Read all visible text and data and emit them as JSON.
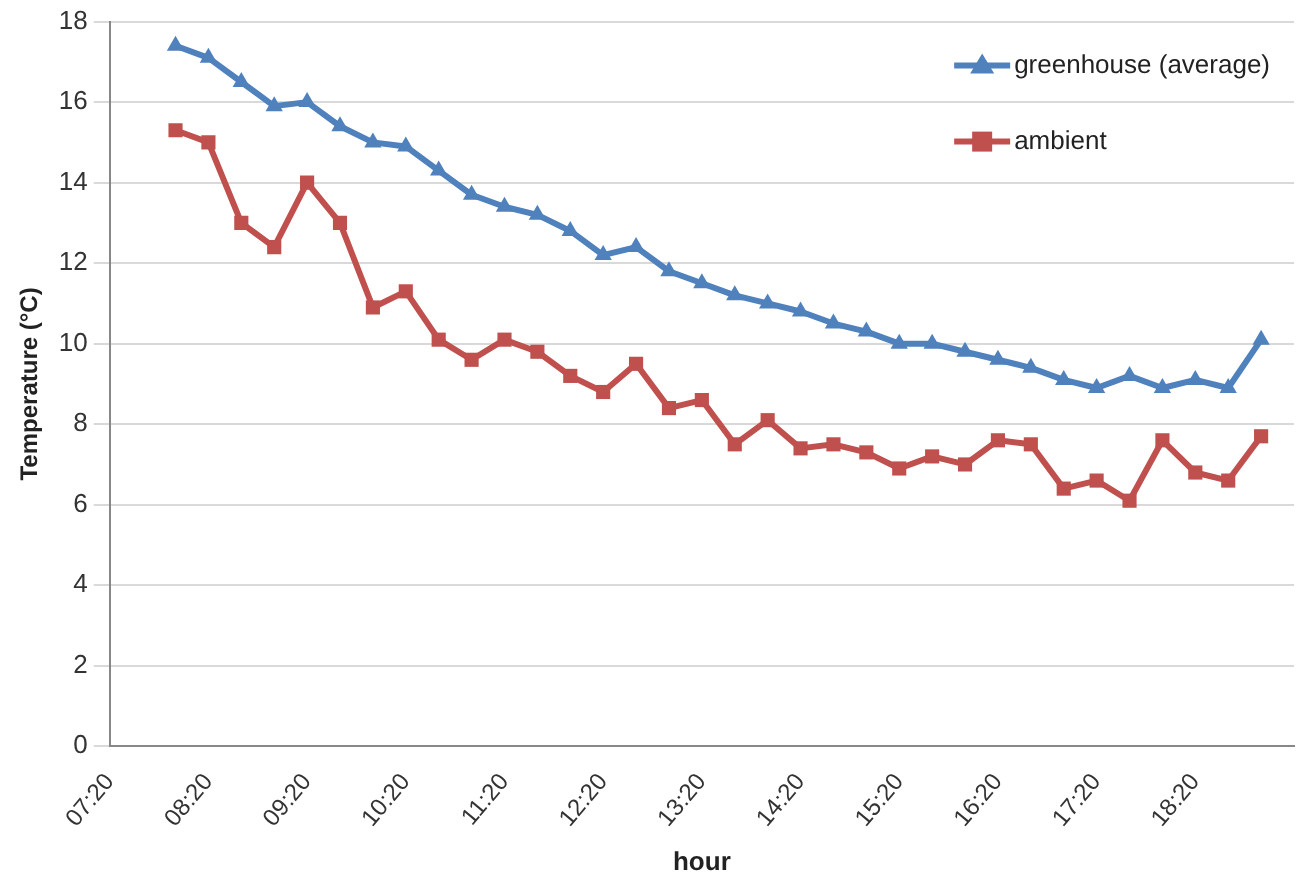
{
  "chart_data": {
    "type": "line",
    "xlabel": "hour",
    "ylabel": "Temperature (°C)",
    "x": [
      8,
      8.3333,
      8.6667,
      9,
      9.3333,
      9.6667,
      10,
      10.3333,
      10.6667,
      11,
      11.3333,
      11.6667,
      12,
      12.3333,
      12.6667,
      13,
      13.3333,
      13.6667,
      14,
      14.3333,
      14.6667,
      15,
      15.3333,
      15.6667,
      16,
      16.3333,
      16.6667,
      17,
      17.3333,
      17.6667,
      18,
      18.3333,
      18.6667,
      19
    ],
    "series": [
      {
        "name": "greenhouse (average)",
        "color": "#4f81bd",
        "marker": "triangle",
        "values": [
          17.4,
          17.1,
          16.5,
          15.9,
          16.0,
          15.4,
          15.0,
          14.9,
          14.3,
          13.7,
          13.4,
          13.2,
          12.8,
          12.2,
          12.4,
          11.8,
          11.5,
          11.2,
          11.0,
          10.8,
          10.5,
          10.3,
          10.0,
          10.0,
          9.8,
          9.6,
          9.4,
          9.1,
          8.9,
          9.2,
          8.9,
          9.1,
          8.9,
          10.1
        ]
      },
      {
        "name": "ambient",
        "color": "#c0504d",
        "marker": "square",
        "values": [
          15.3,
          15.0,
          13.0,
          12.4,
          14.0,
          13.0,
          10.9,
          11.3,
          10.1,
          9.6,
          10.1,
          9.8,
          9.2,
          8.8,
          9.5,
          8.4,
          8.6,
          7.5,
          8.1,
          7.4,
          7.5,
          7.3,
          6.9,
          7.2,
          7.0,
          7.6,
          7.5,
          6.4,
          6.6,
          6.1,
          7.6,
          6.8,
          6.6,
          7.7
        ]
      }
    ],
    "xlim": [
      7.3333,
      19.3333
    ],
    "xticks": [
      {
        "value": 7.3333,
        "label": "07:20"
      },
      {
        "value": 8.3333,
        "label": "08:20"
      },
      {
        "value": 9.3333,
        "label": "09:20"
      },
      {
        "value": 10.3333,
        "label": "10:20"
      },
      {
        "value": 11.3333,
        "label": "11:20"
      },
      {
        "value": 12.3333,
        "label": "12:20"
      },
      {
        "value": 13.3333,
        "label": "13:20"
      },
      {
        "value": 14.3333,
        "label": "14:20"
      },
      {
        "value": 15.3333,
        "label": "15:20"
      },
      {
        "value": 16.3333,
        "label": "16:20"
      },
      {
        "value": 17.3333,
        "label": "17:20"
      },
      {
        "value": 18.3333,
        "label": "18:20"
      }
    ],
    "ylim": [
      0,
      18
    ],
    "yticks": [
      0,
      2,
      4,
      6,
      8,
      10,
      12,
      14,
      16,
      18
    ],
    "grid": "y",
    "legend": "top right",
    "line_style": "solid"
  }
}
